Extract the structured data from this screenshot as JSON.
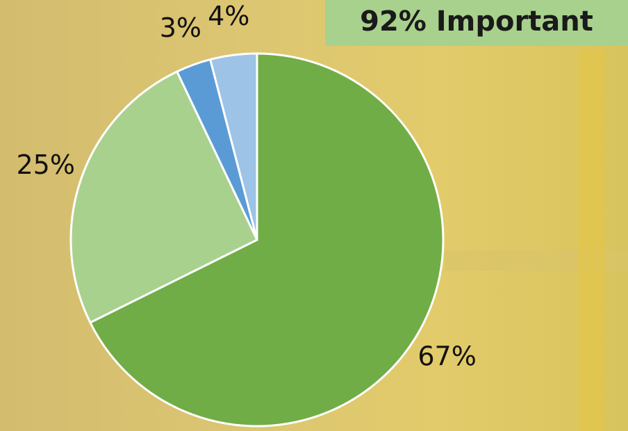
{
  "chart_data": {
    "type": "pie",
    "title": "92% Important",
    "values": [
      67,
      25,
      3,
      4
    ],
    "value_labels": [
      "67%",
      "25%",
      "3%",
      "4%"
    ],
    "colors": [
      "#70ad47",
      "#a9d18e",
      "#5b9bd5",
      "#9dc3e6"
    ]
  }
}
